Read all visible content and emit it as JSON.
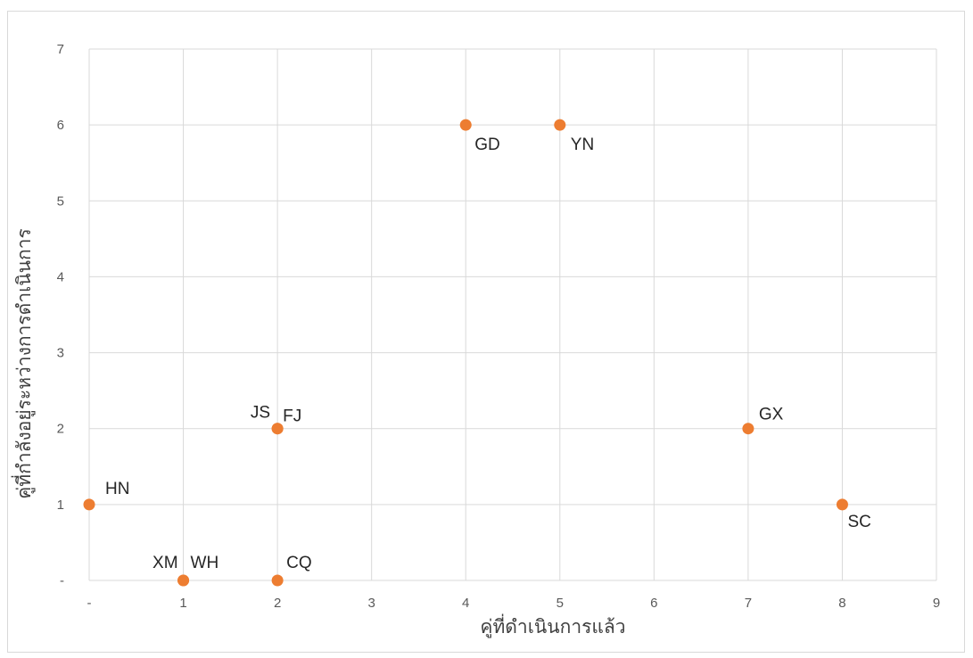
{
  "chart_data": {
    "type": "scatter",
    "xlabel": "คู่ที่ดำเนินการแล้ว",
    "ylabel": "คู่ที่กำลังอยู่ระหว่างการดำเนินการ",
    "xlim": [
      0,
      9
    ],
    "ylim": [
      0,
      7
    ],
    "x_ticks": [
      "-",
      "1",
      "2",
      "3",
      "4",
      "5",
      "6",
      "7",
      "8",
      "9"
    ],
    "y_ticks": [
      "-",
      "1",
      "2",
      "3",
      "4",
      "5",
      "6",
      "7"
    ],
    "grid": true,
    "marker_color": "#ED7D31",
    "points": [
      {
        "label": "HN",
        "x": 0,
        "y": 1
      },
      {
        "label": "XM",
        "x": 1,
        "y": 0
      },
      {
        "label": "WH",
        "x": 1,
        "y": 0
      },
      {
        "label": "CQ",
        "x": 2,
        "y": 0
      },
      {
        "label": "JS",
        "x": 2,
        "y": 2
      },
      {
        "label": "FJ",
        "x": 2,
        "y": 2
      },
      {
        "label": "GD",
        "x": 4,
        "y": 6
      },
      {
        "label": "YN",
        "x": 5,
        "y": 6
      },
      {
        "label": "GX",
        "x": 7,
        "y": 2
      },
      {
        "label": "SC",
        "x": 8,
        "y": 1
      }
    ]
  }
}
